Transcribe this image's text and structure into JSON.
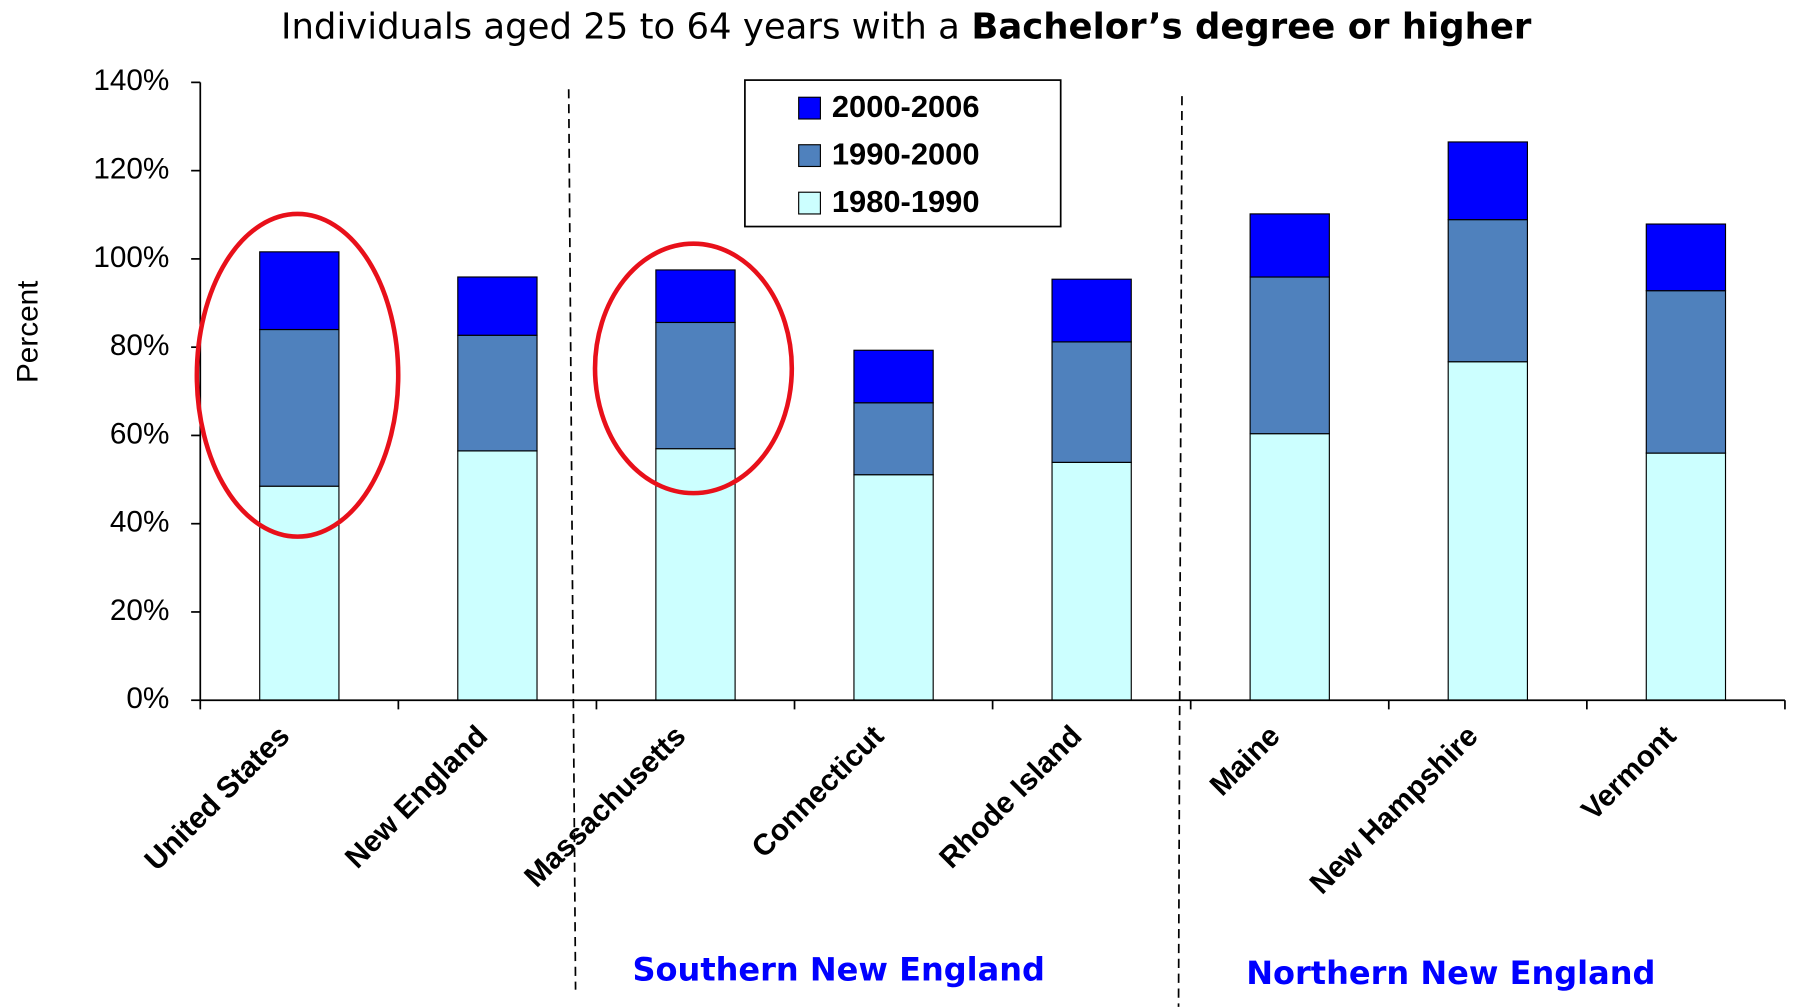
{
  "chart_data": {
    "type": "stacked_bar",
    "title": [
      "Individuals aged 25 to 64 years with a",
      "Bachelor’s degree or higher"
    ],
    "ylabel": "Percent",
    "categories": [
      "United States",
      "New England",
      "Massachusetts",
      "Connecticut",
      "Rhode Island",
      "Maine",
      "New Hampshire",
      "Vermont"
    ],
    "series": [
      {
        "name": "1980-1990",
        "color": "#ccffff",
        "values": [
          48.5,
          56.5,
          57.0,
          51.1,
          53.9,
          60.4,
          76.7,
          56.0
        ]
      },
      {
        "name": "1990-2000",
        "color": "#4f81bd",
        "values": [
          35.5,
          26.2,
          28.6,
          16.3,
          27.3,
          35.5,
          32.2,
          36.8
        ]
      },
      {
        "name": "2000-2006",
        "color": "#0000ff",
        "values": [
          17.6,
          13.2,
          11.9,
          11.9,
          14.2,
          14.3,
          17.6,
          15.1
        ]
      }
    ],
    "ylim": [
      0,
      140
    ],
    "yticks": [
      {
        "value": 0,
        "label": "0%"
      },
      {
        "value": 20,
        "label": "20%"
      },
      {
        "value": 40,
        "label": "40%"
      },
      {
        "value": 60,
        "label": "60%"
      },
      {
        "value": 80,
        "label": "80%"
      },
      {
        "value": 100,
        "label": "100%"
      },
      {
        "value": 120,
        "label": "120%"
      },
      {
        "value": 140,
        "label": "140%"
      }
    ],
    "groups": [
      "Southern New England",
      "Northern New England"
    ]
  }
}
